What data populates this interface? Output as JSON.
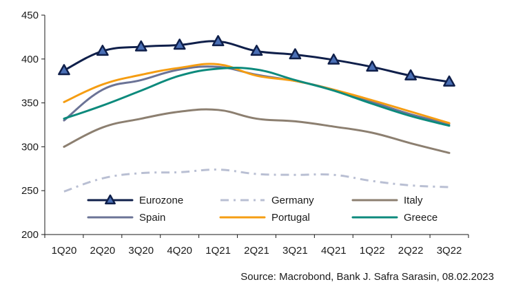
{
  "chart_data": {
    "type": "line",
    "categories": [
      "1Q20",
      "2Q20",
      "3Q20",
      "4Q20",
      "1Q21",
      "2Q21",
      "3Q21",
      "4Q21",
      "1Q22",
      "2Q22",
      "3Q22"
    ],
    "ylim": [
      200,
      450
    ],
    "yticks": [
      200,
      250,
      300,
      350,
      400,
      450
    ],
    "grid": false,
    "legend_position": "bottom-inside",
    "series": [
      {
        "name": "Eurozone",
        "color": "#0f1f4a",
        "style": "solid-markers",
        "marker": "triangle",
        "values": [
          387,
          409,
          414,
          416,
          420,
          409,
          405,
          399,
          391,
          381,
          374
        ]
      },
      {
        "name": "Germany",
        "color": "#b9bfd3",
        "style": "dashdot",
        "values": [
          249,
          264,
          270,
          271,
          274,
          269,
          268,
          268,
          261,
          256,
          254
        ]
      },
      {
        "name": "Italy",
        "color": "#8c7f70",
        "style": "solid",
        "values": [
          300,
          322,
          332,
          340,
          342,
          332,
          329,
          323,
          316,
          304,
          293
        ]
      },
      {
        "name": "Spain",
        "color": "#6b7396",
        "style": "solid",
        "values": [
          330,
          365,
          376,
          388,
          391,
          382,
          375,
          365,
          351,
          337,
          326
        ]
      },
      {
        "name": "Portugal",
        "color": "#f59d12",
        "style": "solid",
        "values": [
          351,
          371,
          382,
          390,
          394,
          381,
          375,
          365,
          353,
          340,
          327
        ]
      },
      {
        "name": "Greece",
        "color": "#0c8a7c",
        "style": "solid",
        "values": [
          332,
          347,
          364,
          381,
          389,
          388,
          376,
          364,
          349,
          335,
          324
        ]
      }
    ]
  },
  "source": "Source: Macrobond, Bank J. Safra Sarasin, 08.02.2023"
}
